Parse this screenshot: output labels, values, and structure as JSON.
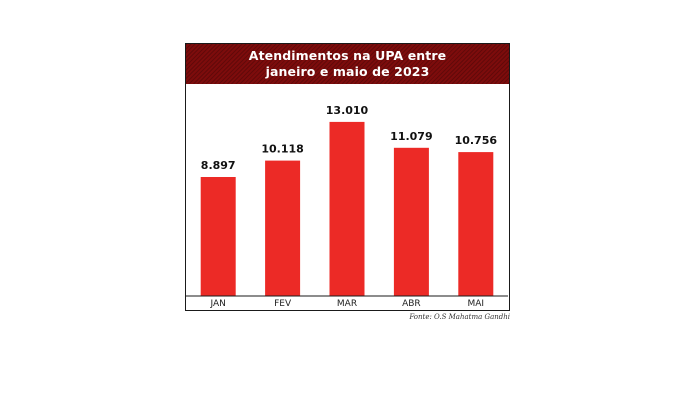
{
  "chart_data": {
    "type": "bar",
    "title": "Atendimentos na UPA entre janeiro e maio de 2023",
    "title_lines": [
      "Atendimentos na UPA entre",
      "janeiro e maio de 2023"
    ],
    "categories": [
      "JAN",
      "FEV",
      "MAR",
      "ABR",
      "MAI"
    ],
    "values": [
      8897,
      10118,
      13010,
      11079,
      10756
    ],
    "value_labels": [
      "8.897",
      "10.118",
      "13.010",
      "11.079",
      "10.756"
    ],
    "xlabel": "",
    "ylabel": "",
    "ylim": [
      0,
      14500
    ],
    "grid": false,
    "legend": "none",
    "colors": {
      "bar": "#ec2a26",
      "title_band": "#7d0c0c",
      "axis": "#1a1a1a"
    },
    "source": "Fonte: O.S Mahatma Gandhi"
  }
}
